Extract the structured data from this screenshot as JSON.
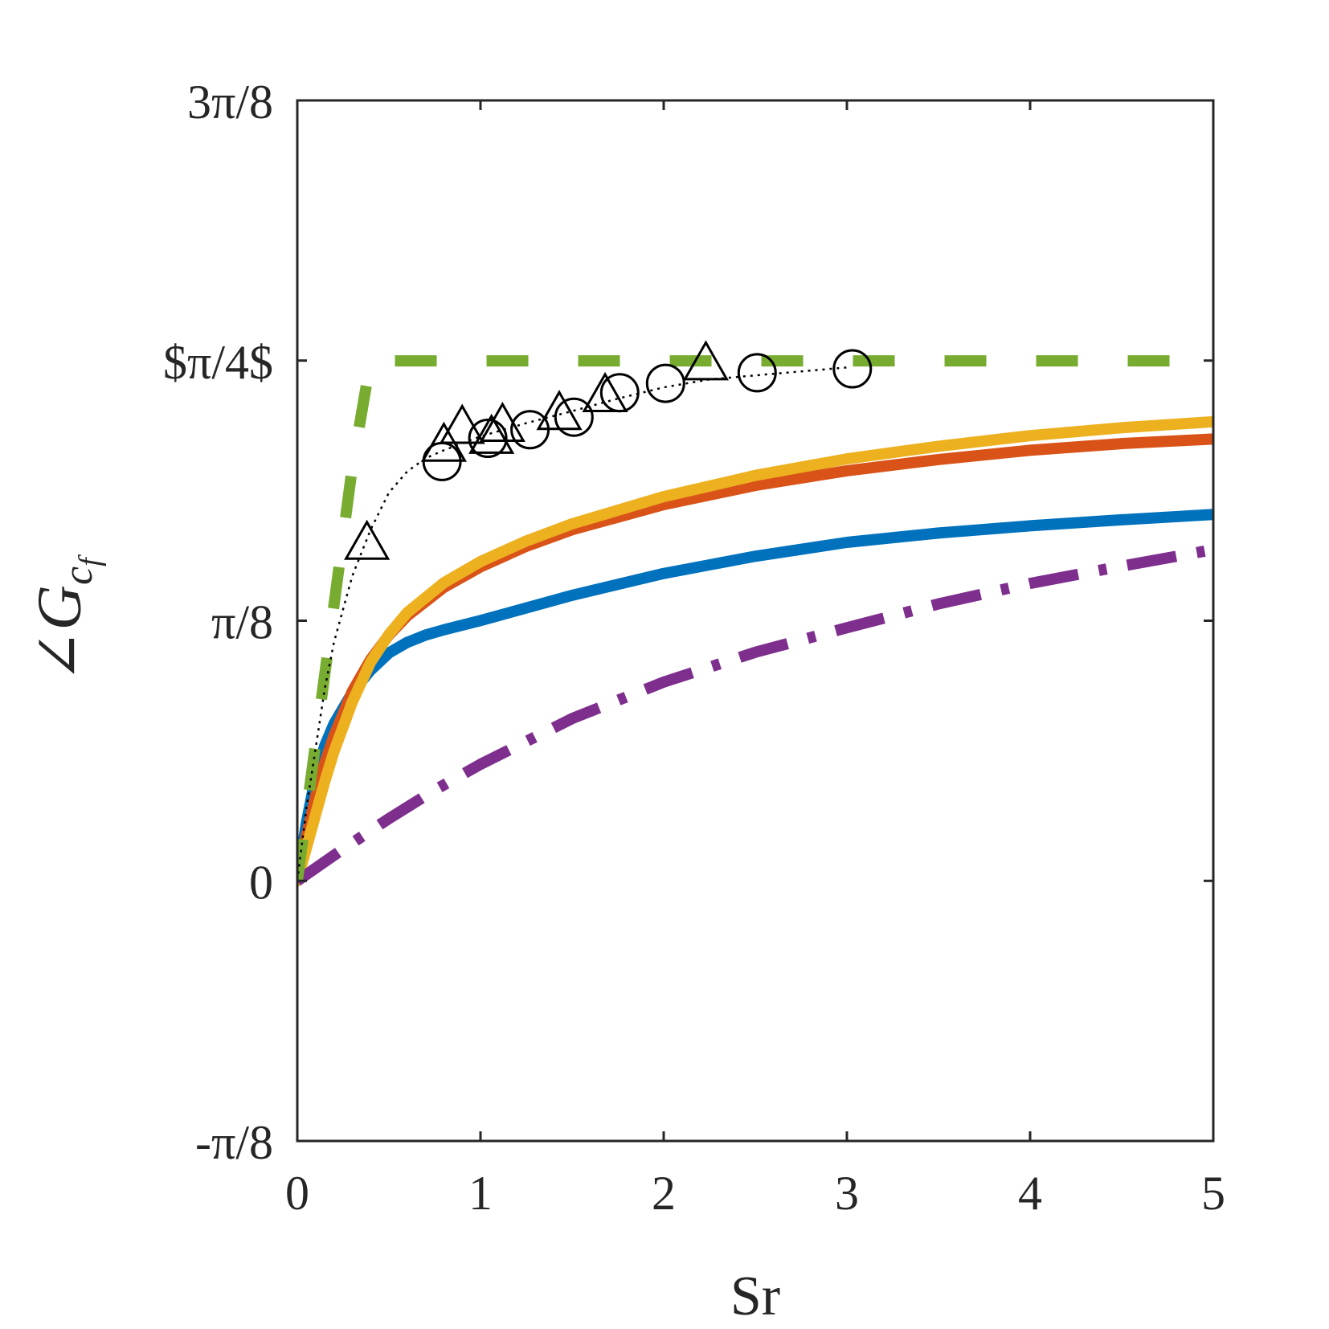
{
  "chart_data": {
    "type": "line",
    "xlabel": "Sr",
    "ylabel": "∠G",
    "ylabel_subscript": "c",
    "ylabel_subsubscript": "f",
    "xlim": [
      0,
      5
    ],
    "ylim": [
      -0.392699,
      1.178097
    ],
    "x_ticks": [
      0,
      1,
      2,
      3,
      4,
      5
    ],
    "x_tick_labels": [
      "0",
      "1",
      "2",
      "3",
      "4",
      "5"
    ],
    "y_ticks": [
      -0.392699,
      0,
      0.392699,
      0.785398,
      1.178097
    ],
    "y_tick_labels": [
      "-π/8",
      "0",
      "π/8",
      "$π/4$",
      "3π/8"
    ],
    "grid": false,
    "series": [
      {
        "color": "#0072BD",
        "style": "solid",
        "x": [
          0,
          0.05,
          0.1,
          0.15,
          0.2,
          0.3,
          0.4,
          0.5,
          0.6,
          0.7,
          0.8,
          1.0,
          1.5,
          2.0,
          2.5,
          3.0,
          3.5,
          4.0,
          4.5,
          5.0
        ],
        "y": [
          0,
          0.088,
          0.158,
          0.204,
          0.237,
          0.284,
          0.318,
          0.344,
          0.36,
          0.371,
          0.379,
          0.393,
          0.431,
          0.464,
          0.49,
          0.511,
          0.525,
          0.536,
          0.545,
          0.553
        ]
      },
      {
        "color": "#D95319",
        "style": "solid",
        "x": [
          0,
          0.05,
          0.1,
          0.15,
          0.2,
          0.3,
          0.4,
          0.5,
          0.6,
          0.8,
          1.0,
          1.25,
          1.5,
          2.0,
          2.5,
          3.0,
          3.5,
          4.0,
          4.5,
          5.0
        ],
        "y": [
          0,
          0.068,
          0.127,
          0.178,
          0.219,
          0.286,
          0.334,
          0.371,
          0.4,
          0.443,
          0.474,
          0.505,
          0.53,
          0.568,
          0.597,
          0.619,
          0.636,
          0.65,
          0.66,
          0.667
        ]
      },
      {
        "color": "#EDB120",
        "style": "solid",
        "x": [
          0,
          0.05,
          0.1,
          0.15,
          0.2,
          0.3,
          0.4,
          0.5,
          0.6,
          0.8,
          1.0,
          1.25,
          1.5,
          2.0,
          2.5,
          3.0,
          3.5,
          4.0,
          4.5,
          5.0
        ],
        "y": [
          0,
          0.05,
          0.1,
          0.15,
          0.195,
          0.27,
          0.33,
          0.372,
          0.405,
          0.45,
          0.482,
          0.513,
          0.539,
          0.58,
          0.612,
          0.637,
          0.656,
          0.672,
          0.684,
          0.693
        ]
      },
      {
        "color": "#7E2F8E",
        "style": "dashdot",
        "x": [
          0,
          0.25,
          0.5,
          0.75,
          1.0,
          1.5,
          2.0,
          2.5,
          3.0,
          3.5,
          4.0,
          4.5,
          5.0
        ],
        "y": [
          0,
          0.048,
          0.094,
          0.137,
          0.176,
          0.245,
          0.3,
          0.345,
          0.382,
          0.418,
          0.449,
          0.475,
          0.5
        ]
      },
      {
        "color": "#77AC30",
        "style": "dashed",
        "x": [
          0,
          0.1,
          0.2,
          0.3,
          0.4,
          0.5,
          0.6,
          0.8,
          1.0,
          2.0,
          3.0,
          4.0,
          5.0
        ],
        "y": [
          0,
          0.208,
          0.416,
          0.624,
          0.785,
          0.785,
          0.785,
          0.785,
          0.785,
          0.785,
          0.785,
          0.785,
          0.785
        ]
      },
      {
        "color": "#000000",
        "style": "dotted",
        "x": [
          0,
          0.05,
          0.1,
          0.15,
          0.2,
          0.3,
          0.4,
          0.5,
          0.6,
          0.7,
          0.8,
          1.0,
          1.25,
          1.5,
          1.75,
          2.0,
          2.25,
          2.5,
          3.0
        ],
        "y": [
          0,
          0.11,
          0.2,
          0.29,
          0.36,
          0.46,
          0.53,
          0.586,
          0.618,
          0.638,
          0.65,
          0.671,
          0.691,
          0.709,
          0.728,
          0.745,
          0.757,
          0.763,
          0.775
        ]
      }
    ],
    "markers_circle": {
      "x": [
        0.79,
        1.04,
        1.27,
        1.51,
        1.76,
        2.01,
        2.51,
        3.03
      ],
      "y": [
        0.633,
        0.668,
        0.681,
        0.7,
        0.737,
        0.751,
        0.767,
        0.773
      ]
    },
    "markers_triangle": {
      "x": [
        0.38,
        0.8,
        0.9,
        1.06,
        1.12,
        1.43,
        1.68,
        2.23
      ],
      "y": [
        0.51,
        0.658,
        0.685,
        0.67,
        0.688,
        0.706,
        0.733,
        0.781
      ]
    }
  }
}
